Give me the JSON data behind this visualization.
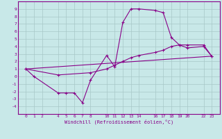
{
  "xlabel": "Windchill (Refroidissement éolien,°C)",
  "bg_color": "#c8e8e8",
  "grid_color": "#a8c8c8",
  "line_color": "#880088",
  "xlim": [
    -0.5,
    23.5
  ],
  "ylim": [
    -4.5,
    9.5
  ],
  "xticks": [
    0,
    1,
    2,
    4,
    5,
    6,
    7,
    8,
    10,
    11,
    12,
    13,
    14,
    16,
    17,
    18,
    19,
    20,
    22,
    23
  ],
  "yticks": [
    -4,
    -3,
    -2,
    -1,
    0,
    1,
    2,
    3,
    4,
    5,
    6,
    7,
    8,
    9
  ],
  "line1_x": [
    0,
    1,
    4,
    5,
    6,
    7,
    8,
    10,
    11,
    12,
    13,
    14,
    16,
    17,
    18,
    19,
    20,
    22,
    23
  ],
  "line1_y": [
    1.0,
    0.0,
    -2.2,
    -2.2,
    -2.2,
    -3.5,
    -0.5,
    2.8,
    1.3,
    7.2,
    9.0,
    9.0,
    8.8,
    8.5,
    5.2,
    4.2,
    3.8,
    4.0,
    2.7
  ],
  "line2_x": [
    0,
    4,
    8,
    10,
    11,
    12,
    13,
    14,
    16,
    17,
    18,
    19,
    20,
    22,
    23
  ],
  "line2_y": [
    1.0,
    0.2,
    0.5,
    1.0,
    1.5,
    2.0,
    2.5,
    2.8,
    3.2,
    3.5,
    4.0,
    4.2,
    4.2,
    4.2,
    2.7
  ],
  "line3_x": [
    0,
    23
  ],
  "line3_y": [
    1.0,
    2.7
  ]
}
